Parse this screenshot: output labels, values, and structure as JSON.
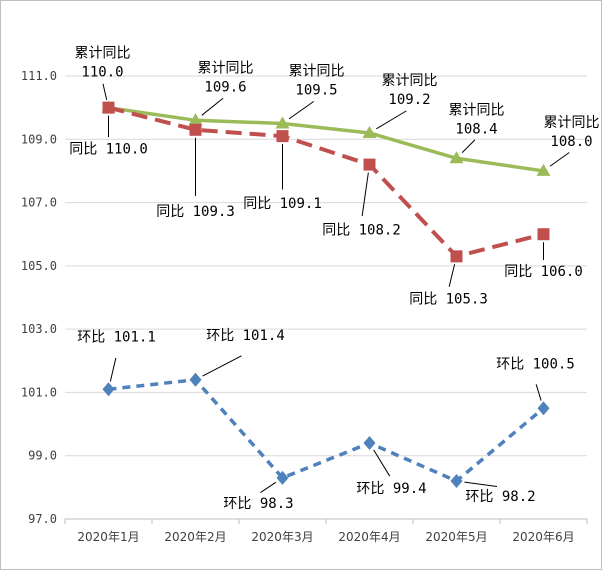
{
  "chart_data": {
    "type": "line",
    "categories": [
      "2020年1月",
      "2020年2月",
      "2020年3月",
      "2020年4月",
      "2020年5月",
      "2020年6月"
    ],
    "ylim": [
      97.0,
      111.0
    ],
    "yticks": [
      "97.0",
      "99.0",
      "101.0",
      "103.0",
      "105.0",
      "107.0",
      "109.0",
      "111.0"
    ],
    "grid": true,
    "series": [
      {
        "key": "cumulative",
        "color": "#9bbb59",
        "marker": "triangle",
        "dash": "solid",
        "values": [
          110.0,
          109.6,
          109.5,
          109.2,
          108.4,
          108.0
        ],
        "labels": [
          {
            "prefix": "累计同比",
            "value": "110.0"
          },
          {
            "prefix": "累计同比",
            "value": "109.6"
          },
          {
            "prefix": "累计同比",
            "value": "109.5"
          },
          {
            "prefix": "累计同比",
            "value": "109.2"
          },
          {
            "prefix": "累计同比",
            "value": "108.4"
          },
          {
            "prefix": "累计同比",
            "value": "108.0"
          }
        ]
      },
      {
        "key": "yoy",
        "color": "#c0504d",
        "marker": "square",
        "dash": "long-dash",
        "values": [
          110.0,
          109.3,
          109.1,
          108.2,
          105.3,
          106.0
        ],
        "labels": [
          {
            "prefix": "同比",
            "value": "110.0"
          },
          {
            "prefix": "同比",
            "value": "109.3"
          },
          {
            "prefix": "同比",
            "value": "109.1"
          },
          {
            "prefix": "同比",
            "value": "108.2"
          },
          {
            "prefix": "同比",
            "value": "105.3"
          },
          {
            "prefix": "同比",
            "value": "106.0"
          }
        ]
      },
      {
        "key": "mom",
        "color": "#4f81bd",
        "marker": "diamond",
        "dash": "short-dash",
        "values": [
          101.1,
          101.4,
          98.3,
          99.4,
          98.2,
          100.5
        ],
        "labels": [
          {
            "prefix": "环比",
            "value": "101.1"
          },
          {
            "prefix": "环比",
            "value": "101.4"
          },
          {
            "prefix": "环比",
            "value": "98.3"
          },
          {
            "prefix": "环比",
            "value": "99.4"
          },
          {
            "prefix": "环比",
            "value": "98.2"
          },
          {
            "prefix": "环比",
            "value": "100.5"
          }
        ]
      }
    ]
  }
}
